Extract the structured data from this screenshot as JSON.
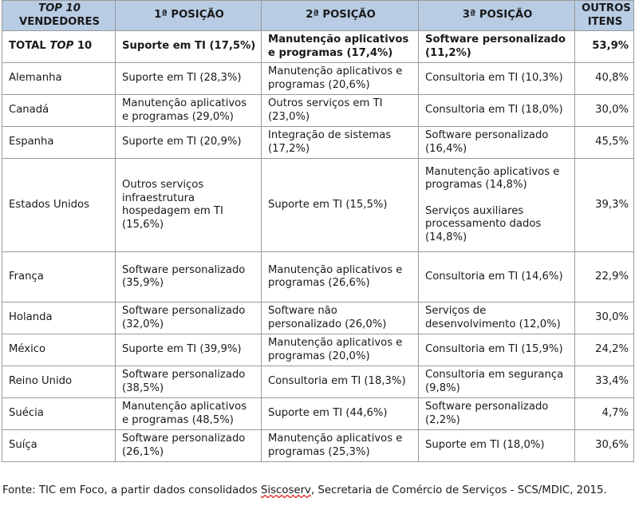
{
  "header": {
    "col0_line1": "TOP 10",
    "col0_line2": "VENDEDORES",
    "col1": "1ª POSIÇÃO",
    "col2": "2ª POSIÇÃO",
    "col3": "3ª POSIÇÃO",
    "col4_line1": "OUTROS",
    "col4_line2": "ITENS"
  },
  "total": {
    "label_a": "TOTAL ",
    "label_b": "TOP",
    "label_c": " 10",
    "p1": "Suporte em TI (17,5%)",
    "p2": "Manutenção aplicativos e programas (17,4%)",
    "p3": "Software personalizado (11,2%)",
    "other": "53,9%"
  },
  "rows": [
    {
      "country": "Alemanha",
      "p1": "Suporte em TI (28,3%)",
      "p2": "Manutenção aplicativos e programas (20,6%)",
      "p3": "Consultoria em TI (10,3%)",
      "other": "40,8%"
    },
    {
      "country": "Canadá",
      "p1": "Manutenção aplicativos e programas (29,0%)",
      "p2": "Outros serviços em TI (23,0%)",
      "p3": "Consultoria em TI (18,0%)",
      "other": "30,0%"
    },
    {
      "country": "Espanha",
      "p1": "Suporte em TI (20,9%)",
      "p2": "Integração de sistemas (17,2%)",
      "p3": "Software personalizado (16,4%)",
      "other": "45,5%"
    },
    {
      "country": "Estados Unidos",
      "p1": "Outros serviços infraestrutura hospedagem em TI (15,6%)",
      "p2": "Suporte em TI (15,5%)",
      "p3a": "Manutenção aplicativos e programas (14,8%)",
      "p3b": "Serviços auxiliares processamento dados (14,8%)",
      "other": "39,3%"
    },
    {
      "country": "França",
      "p1": "Software personalizado (35,9%)",
      "p2": "Manutenção aplicativos e programas (26,6%)",
      "p3": "Consultoria em TI (14,6%)",
      "other": "22,9%"
    },
    {
      "country": "Holanda",
      "p1": "Software personalizado (32,0%)",
      "p2": "Software não personalizado (26,0%)",
      "p3": "Serviços de desenvolvimento (12,0%)",
      "other": "30,0%"
    },
    {
      "country": "México",
      "p1": "Suporte em TI (39,9%)",
      "p2": "Manutenção aplicativos e programas (20,0%)",
      "p3": "Consultoria em TI (15,9%)",
      "other": "24,2%"
    },
    {
      "country": "Reino Unido",
      "p1": "Software personalizado (38,5%)",
      "p2": "Consultoria em TI (18,3%)",
      "p3": "Consultoria em segurança (9,8%)",
      "other": "33,4%"
    },
    {
      "country": "Suécia",
      "p1": "Manutenção aplicativos e programas (48,5%)",
      "p2": "Suporte em TI (44,6%)",
      "p3": "Software personalizado (2,2%)",
      "other": "4,7%"
    },
    {
      "country": "Suíça",
      "p1": "Software personalizado (26,1%)",
      "p2": "Manutenção aplicativos e programas (25,3%)",
      "p3": "Suporte em TI (18,0%)",
      "other": "30,6%"
    }
  ],
  "source": {
    "before": "Fonte: TIC em Foco, a partir dados consolidados ",
    "word": "Siscoserv",
    "after": ", Secretaria de Comércio de Serviços - SCS/MDIC, 2015."
  }
}
